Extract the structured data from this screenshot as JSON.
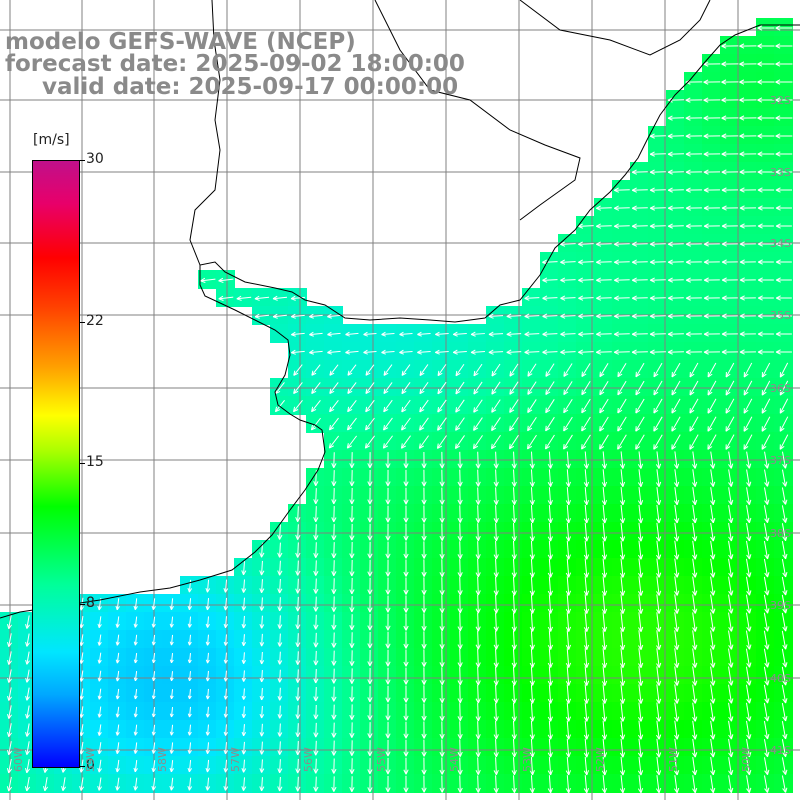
{
  "title": {
    "line1": "modelo GEFS-WAVE (NCEP)",
    "line2": "forecast date: 2025-09-02 18:00:00",
    "line3": "valid date: 2025-09-17 00:00:00"
  },
  "colorbar": {
    "unit": "[m/s]",
    "min": 0,
    "max": 30,
    "ticks": [
      {
        "value": 30,
        "label": "30"
      },
      {
        "value": 22,
        "label": "22"
      },
      {
        "value": 15,
        "label": "15"
      },
      {
        "value": 8,
        "label": "8"
      },
      {
        "value": 0,
        "label": "0"
      }
    ],
    "colors": [
      "#0000ff",
      "#00a8ff",
      "#00e6ff",
      "#00ff9a",
      "#00ff00",
      "#a8ff00",
      "#ffff00",
      "#ffa000",
      "#ff4000",
      "#ff0000",
      "#e8006a",
      "#c0108a"
    ]
  },
  "latitude_labels": [
    "32S",
    "33S",
    "34S",
    "35S",
    "36S",
    "37S",
    "38S",
    "39S",
    "40S",
    "41S"
  ],
  "longitude_labels": [
    "60W",
    "59W",
    "58W",
    "57W",
    "56W",
    "55W",
    "54W",
    "53W",
    "52W",
    "51W",
    "50W"
  ],
  "map": {
    "field": "wind speed with direction arrows",
    "land_color": "#ffffff",
    "grid_color": "#808080",
    "coastline_color": "#000000",
    "arrow_color": "#ffffff"
  }
}
